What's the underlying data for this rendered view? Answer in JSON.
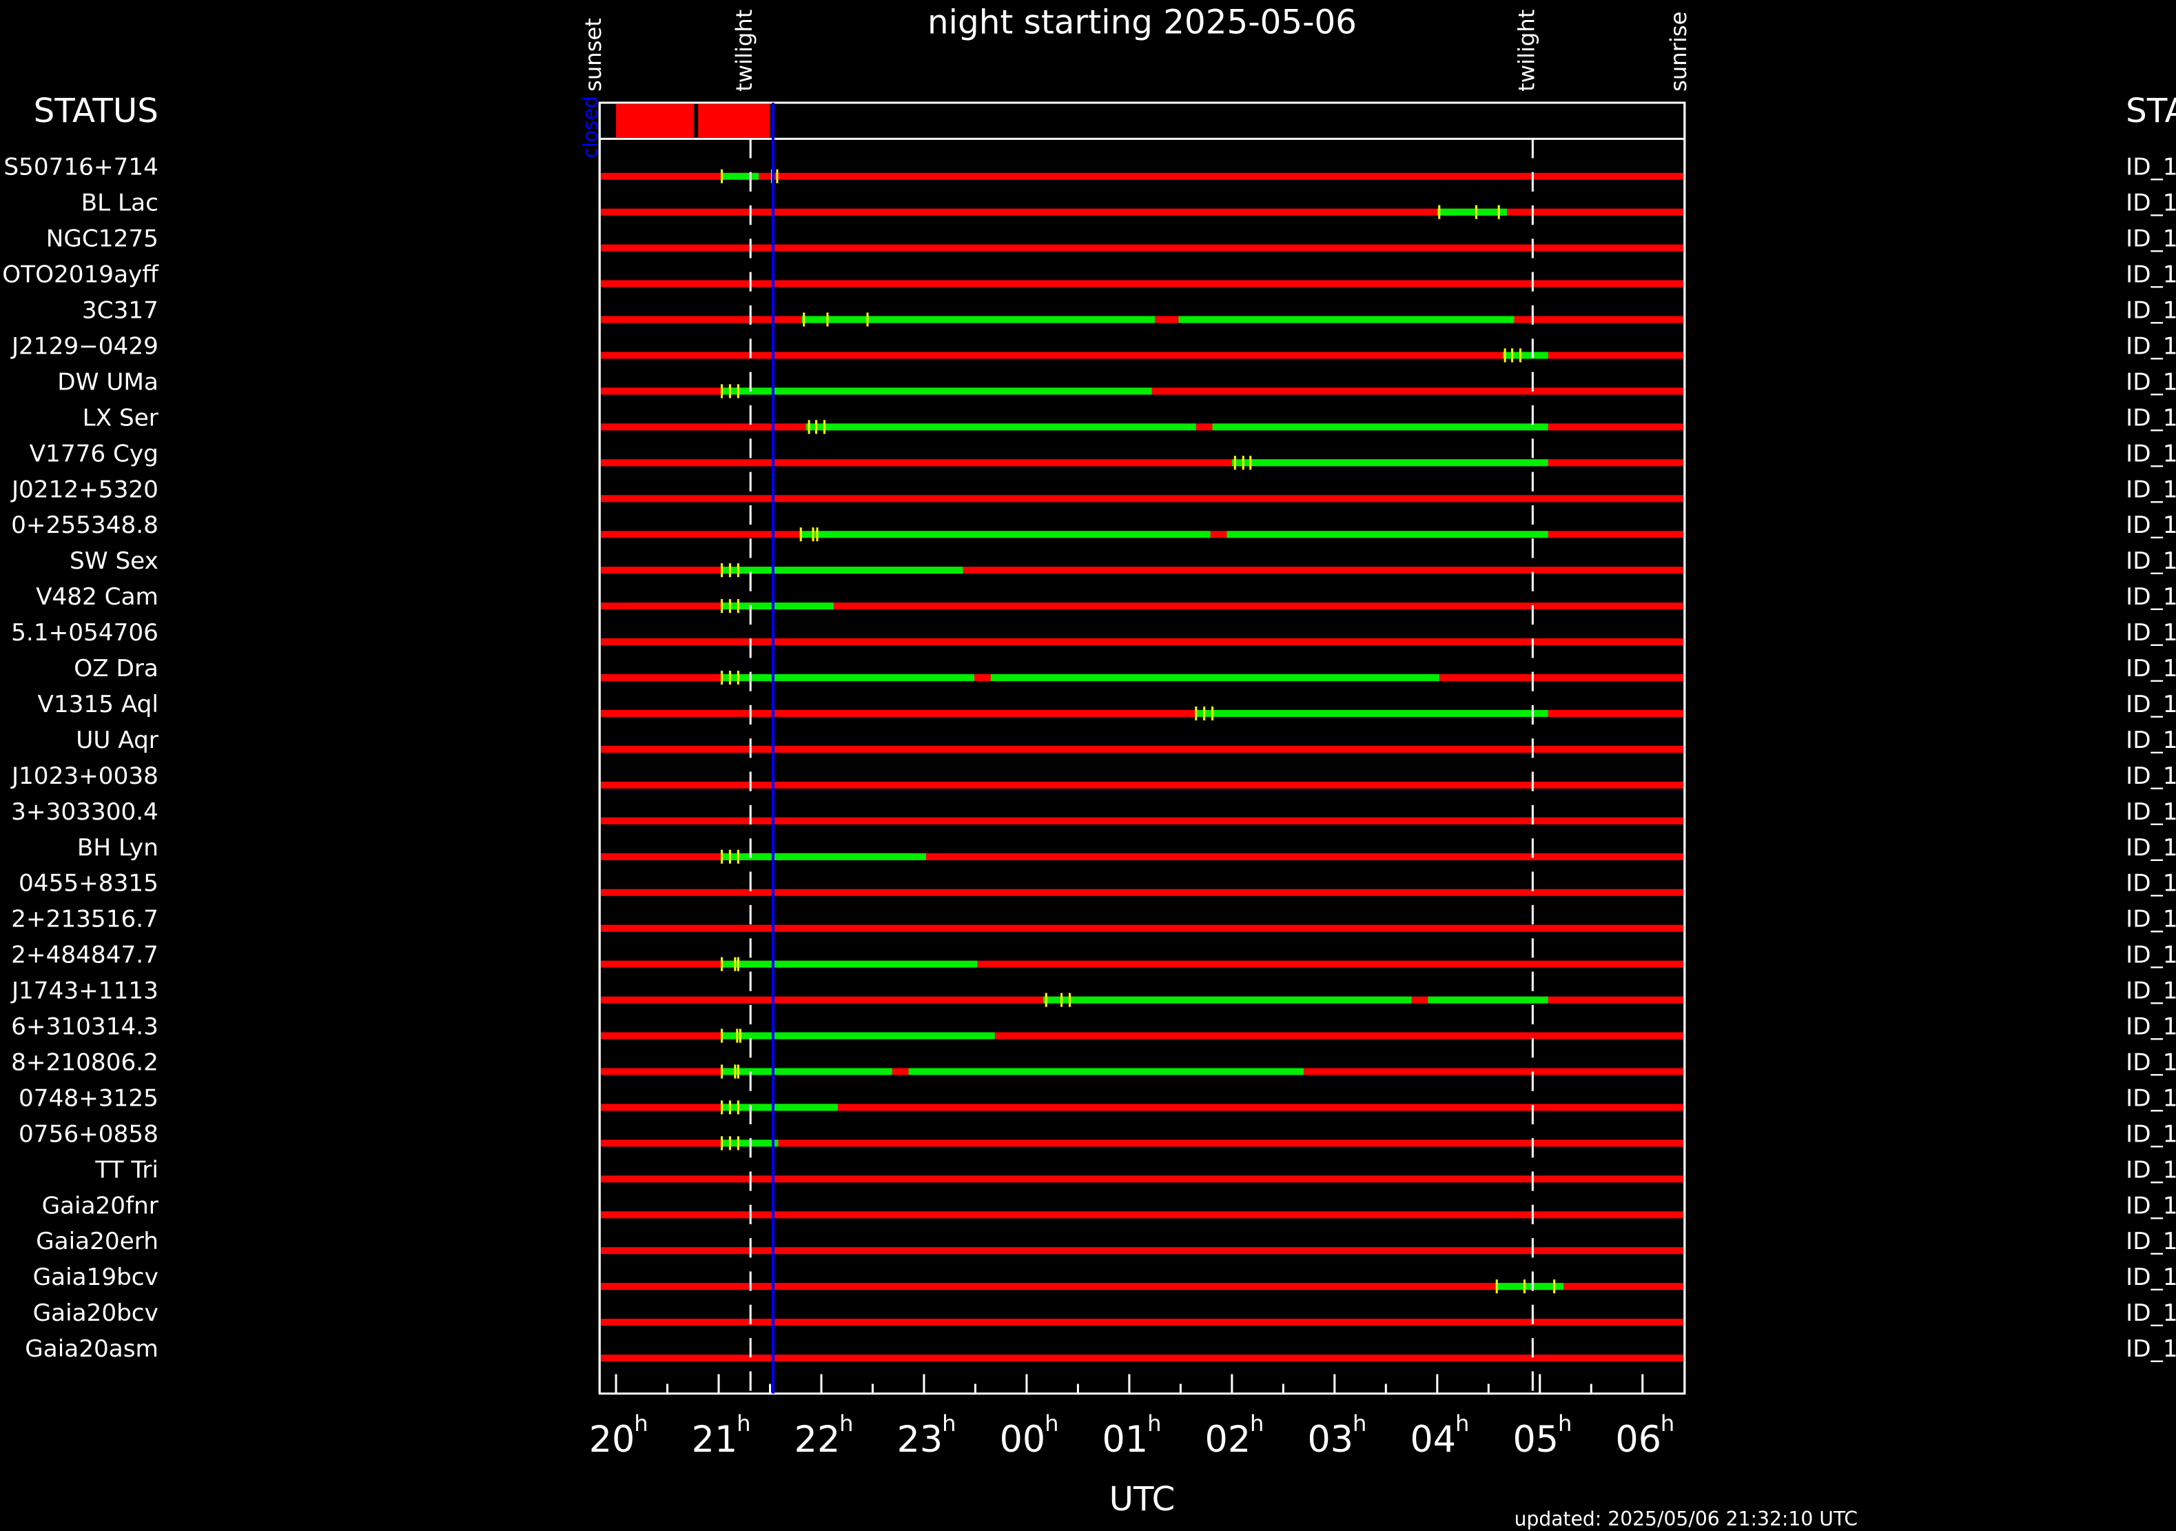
{
  "chart_data": {
    "type": "timeline",
    "title": "night starting 2025-05-06",
    "x_label": "UTC",
    "updated": "updated: 2025/05/06 21:32:10 UTC",
    "status_label": "STATUS",
    "status_text": "closed",
    "status_blocks": [
      [
        20.0,
        20.76
      ],
      [
        20.8,
        21.5
      ]
    ],
    "xlim": [
      19.84,
      30.41
    ],
    "xticks": [
      20,
      21,
      22,
      23,
      {
        "value": 24,
        "label": "00"
      },
      {
        "value": 25,
        "label": "01"
      },
      {
        "value": 26,
        "label": "02"
      },
      {
        "value": 27,
        "label": "03"
      },
      {
        "value": 28,
        "label": "04"
      },
      {
        "value": 29,
        "label": "05"
      },
      {
        "value": 30,
        "label": "06"
      }
    ],
    "xminor": [
      20.5,
      21.5,
      22.5,
      23.5,
      24.5,
      25.5,
      26.5,
      27.5,
      28.5,
      29.5
    ],
    "tick_suffix": "h",
    "events": [
      {
        "label": "sunset",
        "x": 19.84,
        "dashed": false
      },
      {
        "label": "twilight",
        "x": 21.31,
        "dashed": true
      },
      {
        "label": "twilight",
        "x": 28.93,
        "dashed": true
      },
      {
        "label": "sunrise",
        "x": 30.41,
        "dashed": false
      }
    ],
    "now": 21.53,
    "colors": {
      "unobservable": "#ff0000",
      "window": "#00ee00",
      "mark": "#ffff00",
      "now": "#0000ff",
      "status_text": "#0000ff"
    },
    "rows": [
      {
        "name": "S50716+714",
        "id": "ID_1",
        "windows": [
          [
            21.02,
            21.39
          ]
        ],
        "marks": [
          21.03,
          21.52,
          21.57
        ]
      },
      {
        "name": "BL Lac",
        "id": "ID_1",
        "windows": [
          [
            28.0,
            28.68
          ]
        ],
        "marks": [
          28.02,
          28.38,
          28.6
        ]
      },
      {
        "name": "NGC1275",
        "id": "ID_1",
        "windows": [],
        "marks": []
      },
      {
        "name": "OTO2019ayff",
        "id": "ID_1",
        "windows": [],
        "marks": []
      },
      {
        "name": "3C317",
        "id": "ID_1",
        "windows": [
          [
            21.81,
            25.25
          ],
          [
            25.48,
            28.75
          ]
        ],
        "marks": [
          21.83,
          22.06,
          22.45
        ]
      },
      {
        "name": "J2129−0429",
        "id": "ID_1",
        "windows": [
          [
            28.64,
            29.08
          ]
        ],
        "marks": [
          28.66,
          28.73,
          28.81
        ]
      },
      {
        "name": "DW UMa",
        "id": "ID_1",
        "windows": [
          [
            21.02,
            25.22
          ]
        ],
        "marks": [
          21.03,
          21.11,
          21.19
        ]
      },
      {
        "name": "LX Ser",
        "id": "ID_1",
        "windows": [
          [
            21.85,
            25.65
          ],
          [
            25.81,
            29.08
          ]
        ],
        "marks": [
          21.88,
          21.95,
          22.03
        ]
      },
      {
        "name": "V1776 Cyg",
        "id": "ID_1",
        "windows": [
          [
            26.0,
            29.08
          ]
        ],
        "marks": [
          26.03,
          26.11,
          26.18
        ]
      },
      {
        "name": "J0212+5320",
        "id": "ID_1",
        "windows": [],
        "marks": []
      },
      {
        "name": "0+255348.8",
        "id": "ID_1",
        "windows": [
          [
            21.79,
            25.79
          ],
          [
            25.95,
            29.08
          ]
        ],
        "marks": [
          21.8,
          21.92,
          21.96
        ]
      },
      {
        "name": "SW Sex",
        "id": "ID_1",
        "windows": [
          [
            21.02,
            23.38
          ]
        ],
        "marks": [
          21.03,
          21.11,
          21.19
        ]
      },
      {
        "name": "V482 Cam",
        "id": "ID_1",
        "windows": [
          [
            21.02,
            22.12
          ]
        ],
        "marks": [
          21.03,
          21.11,
          21.19
        ]
      },
      {
        "name": "5.1+054706",
        "id": "ID_1",
        "windows": [],
        "marks": []
      },
      {
        "name": "OZ Dra",
        "id": "ID_1",
        "windows": [
          [
            21.02,
            23.49
          ],
          [
            23.65,
            28.02
          ]
        ],
        "marks": [
          21.03,
          21.11,
          21.19
        ]
      },
      {
        "name": "V1315 Aql",
        "id": "ID_1",
        "windows": [
          [
            25.65,
            29.08
          ]
        ],
        "marks": [
          25.65,
          25.73,
          25.81
        ]
      },
      {
        "name": "UU Aqr",
        "id": "ID_1",
        "windows": [],
        "marks": []
      },
      {
        "name": "J1023+0038",
        "id": "ID_1",
        "windows": [],
        "marks": []
      },
      {
        "name": "3+303300.4",
        "id": "ID_1",
        "windows": [],
        "marks": []
      },
      {
        "name": "BH Lyn",
        "id": "ID_1",
        "windows": [
          [
            21.02,
            23.02
          ]
        ],
        "marks": [
          21.03,
          21.11,
          21.19
        ]
      },
      {
        "name": "0455+8315",
        "id": "ID_1",
        "windows": [],
        "marks": []
      },
      {
        "name": "2+213516.7",
        "id": "ID_1",
        "windows": [],
        "marks": []
      },
      {
        "name": "2+484847.7",
        "id": "ID_1",
        "windows": [
          [
            21.02,
            23.52
          ]
        ],
        "marks": [
          21.03,
          21.16,
          21.19
        ]
      },
      {
        "name": "J1743+1113",
        "id": "ID_1",
        "windows": [
          [
            24.16,
            27.75
          ],
          [
            27.91,
            29.08
          ]
        ],
        "marks": [
          24.19,
          24.34,
          24.42
        ]
      },
      {
        "name": "6+310314.3",
        "id": "ID_1",
        "windows": [
          [
            21.02,
            23.69
          ]
        ],
        "marks": [
          21.03,
          21.18,
          21.21
        ]
      },
      {
        "name": "8+210806.2",
        "id": "ID_1",
        "windows": [
          [
            21.02,
            22.69
          ],
          [
            22.85,
            26.7
          ]
        ],
        "marks": [
          21.03,
          21.16,
          21.19
        ]
      },
      {
        "name": "0748+3125",
        "id": "ID_1",
        "windows": [
          [
            21.02,
            22.16
          ]
        ],
        "marks": [
          21.03,
          21.11,
          21.19
        ]
      },
      {
        "name": "0756+0858",
        "id": "ID_1",
        "windows": [
          [
            21.02,
            21.58
          ]
        ],
        "marks": [
          21.03,
          21.11,
          21.19
        ]
      },
      {
        "name": "TT Tri",
        "id": "ID_1",
        "windows": [],
        "marks": []
      },
      {
        "name": "Gaia20fnr",
        "id": "ID_1",
        "windows": [],
        "marks": []
      },
      {
        "name": "Gaia20erh",
        "id": "ID_1",
        "windows": [],
        "marks": []
      },
      {
        "name": "Gaia19bcv",
        "id": "ID_1",
        "windows": [
          [
            28.57,
            29.23
          ]
        ],
        "marks": [
          28.58,
          28.85,
          29.14
        ]
      },
      {
        "name": "Gaia20bcv",
        "id": "ID_1",
        "windows": [],
        "marks": []
      },
      {
        "name": "Gaia20asm",
        "id": "ID_1",
        "windows": [],
        "marks": []
      }
    ]
  }
}
